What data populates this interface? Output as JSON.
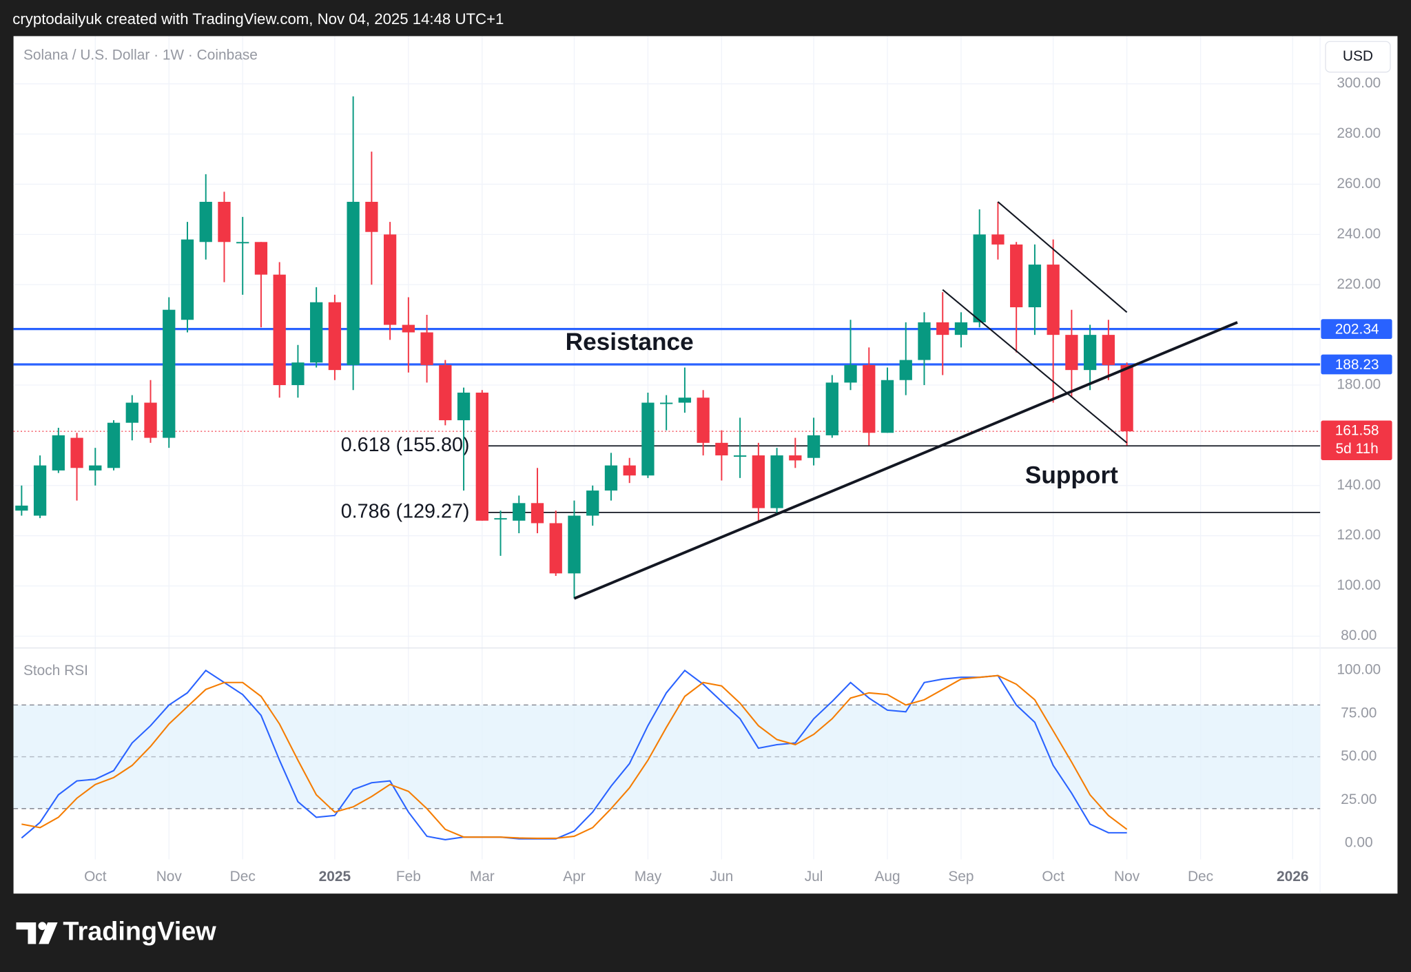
{
  "header": "cryptodailyuk created with TradingView.com, Nov 04, 2025 14:48 UTC+1",
  "footer": "TradingView",
  "chart_data": [
    {
      "type": "candlestick",
      "title": "Solana / U.S. Dollar · 1W · Coinbase",
      "currency": "USD",
      "up_color": "#089981",
      "down_color": "#f23645",
      "open": [
        130,
        128,
        146,
        159,
        146,
        147,
        165,
        173,
        159,
        206,
        237,
        253,
        237,
        237,
        224,
        180,
        189,
        213,
        188,
        253,
        240,
        204,
        201,
        188,
        166,
        177,
        127,
        126,
        133,
        125,
        105,
        128,
        138,
        148,
        144,
        173,
        173,
        175,
        157,
        152,
        152,
        131,
        152,
        151,
        160,
        181,
        188,
        161,
        182,
        190,
        205,
        200,
        205,
        240,
        236,
        211,
        228,
        200,
        186,
        200,
        188
      ],
      "high": [
        140,
        152,
        163,
        161,
        155,
        166,
        176,
        182,
        215,
        245,
        264,
        257,
        247,
        237,
        229,
        196,
        219,
        216,
        295,
        273,
        245,
        215,
        208,
        190,
        179,
        178,
        130,
        136,
        147,
        130,
        134,
        140,
        153,
        151,
        177,
        176,
        187,
        178,
        162,
        167,
        157,
        155,
        159,
        167,
        184,
        206,
        195,
        187,
        205,
        209,
        217,
        209,
        250,
        253,
        237,
        236,
        238,
        210,
        204,
        206,
        189
      ],
      "low": [
        128,
        127,
        145,
        134,
        140,
        146,
        158,
        157,
        155,
        201,
        230,
        221,
        216,
        203,
        175,
        175,
        187,
        182,
        178,
        220,
        198,
        185,
        181,
        164,
        138,
        126,
        112,
        121,
        121,
        104,
        95,
        124,
        134,
        141,
        143,
        162,
        169,
        152,
        142,
        143,
        126,
        129,
        147,
        148,
        159,
        178,
        156,
        161,
        176,
        180,
        184,
        195,
        203,
        230,
        193,
        200,
        173,
        175,
        178,
        182,
        156
      ],
      "close": [
        132,
        148,
        160,
        147,
        148,
        165,
        173,
        159,
        210,
        238,
        253,
        237,
        237,
        224,
        180,
        189,
        213,
        186,
        253,
        241,
        204,
        201,
        188,
        166,
        177,
        126,
        127,
        133,
        125,
        105,
        128,
        138,
        148,
        144,
        173,
        173,
        175,
        157,
        152,
        152,
        131,
        152,
        150,
        160,
        181,
        188,
        161,
        182,
        190,
        205,
        200,
        205,
        240,
        236,
        211,
        228,
        200,
        186,
        200,
        188,
        161.58
      ],
      "countdown": "5d 11h",
      "xlim": [
        -0.44,
        70.49
      ],
      "xticks": [
        {
          "value": 4,
          "label": "Oct"
        },
        {
          "value": 8,
          "label": "Nov"
        },
        {
          "value": 12,
          "label": "Dec"
        },
        {
          "value": 17,
          "label": "2025"
        },
        {
          "value": 21,
          "label": "Feb"
        },
        {
          "value": 25,
          "label": "Mar"
        },
        {
          "value": 30,
          "label": "Apr"
        },
        {
          "value": 34,
          "label": "May"
        },
        {
          "value": 38,
          "label": "Jun"
        },
        {
          "value": 43,
          "label": "Jul"
        },
        {
          "value": 47,
          "label": "Aug"
        },
        {
          "value": 51,
          "label": "Sep"
        },
        {
          "value": 56,
          "label": "Oct"
        },
        {
          "value": 60,
          "label": "Nov"
        },
        {
          "value": 64,
          "label": "Dec"
        },
        {
          "value": 69,
          "label": "2026"
        }
      ],
      "ylim": [
        75.3,
        319
      ],
      "yticks": [
        {
          "value": 80,
          "label": "80.00"
        },
        {
          "value": 100,
          "label": "100.00"
        },
        {
          "value": 120,
          "label": "120.00"
        },
        {
          "value": 140,
          "label": "140.00"
        },
        {
          "value": 180,
          "label": "180.00"
        },
        {
          "value": 220,
          "label": "220.00"
        },
        {
          "value": 240,
          "label": "240.00"
        },
        {
          "value": 260,
          "label": "260.00"
        },
        {
          "value": 280,
          "label": "280.00"
        },
        {
          "value": 300,
          "label": "300.00"
        }
      ],
      "grid": true,
      "levels": [
        {
          "value": 202.34,
          "color": "#2962ff"
        },
        {
          "value": 188.23,
          "color": "#2962ff"
        }
      ],
      "fib_levels": [
        {
          "value": 155.8,
          "label": "0.618 (155.80)",
          "from": 25
        },
        {
          "value": 129.27,
          "label": "0.786 (129.27)",
          "from": 25
        }
      ],
      "trendlines": [
        {
          "points": [
            [
              30,
              95
            ],
            [
              66,
              205
            ]
          ],
          "width": 3
        },
        {
          "points": [
            [
              53,
              253
            ],
            [
              60,
              209
            ]
          ],
          "width": 1.6
        },
        {
          "points": [
            [
              50,
              218
            ],
            [
              60,
              157
            ]
          ],
          "width": 1.6
        }
      ],
      "annotations": [
        {
          "text": "Resistance",
          "x": 33,
          "y": 196.5
        },
        {
          "text": "Support",
          "x": 57,
          "y": 143.5
        }
      ]
    },
    {
      "type": "line",
      "title": "Stoch RSI",
      "xlim": [
        -0.44,
        70.49
      ],
      "ylim": [
        -9.4,
        113
      ],
      "yticks": [
        {
          "value": 0,
          "label": "0.00"
        },
        {
          "value": 25,
          "label": "25.00"
        },
        {
          "value": 50,
          "label": "50.00"
        },
        {
          "value": 75,
          "label": "75.00"
        },
        {
          "value": 100,
          "label": "100.00"
        }
      ],
      "band": [
        20,
        80
      ],
      "midline": 50,
      "band_color": "#e3f2fd",
      "series": [
        {
          "color": "#2962ff",
          "values": [
            3,
            12,
            28,
            36,
            37,
            42,
            58,
            68,
            80,
            87,
            100,
            93,
            86,
            74,
            48,
            24,
            15,
            16,
            31,
            35,
            36,
            18,
            4,
            2,
            3.5,
            3.5,
            3.5,
            2.5,
            2.5,
            2.5,
            7,
            18,
            33,
            46,
            68,
            87,
            100,
            92,
            82,
            72,
            55,
            57,
            58,
            72,
            82,
            93,
            84,
            77,
            76,
            93,
            95,
            96,
            96,
            97,
            80,
            70,
            45,
            29,
            11,
            6,
            6
          ]
        },
        {
          "color": "#f57c00",
          "values": [
            11,
            9,
            15,
            26,
            34,
            38,
            45,
            56,
            69,
            79,
            89,
            93,
            93,
            85,
            69,
            48,
            28,
            18,
            21,
            27,
            34,
            30,
            20,
            8,
            3.5,
            3.5,
            3.5,
            3,
            2.8,
            2.8,
            4,
            9,
            20,
            32,
            48,
            67,
            85,
            93,
            91,
            81,
            68,
            60,
            57,
            63,
            72,
            84,
            87,
            86,
            80,
            83,
            89,
            95,
            96,
            97,
            92,
            83,
            65,
            47,
            28,
            16,
            8
          ]
        }
      ]
    }
  ]
}
